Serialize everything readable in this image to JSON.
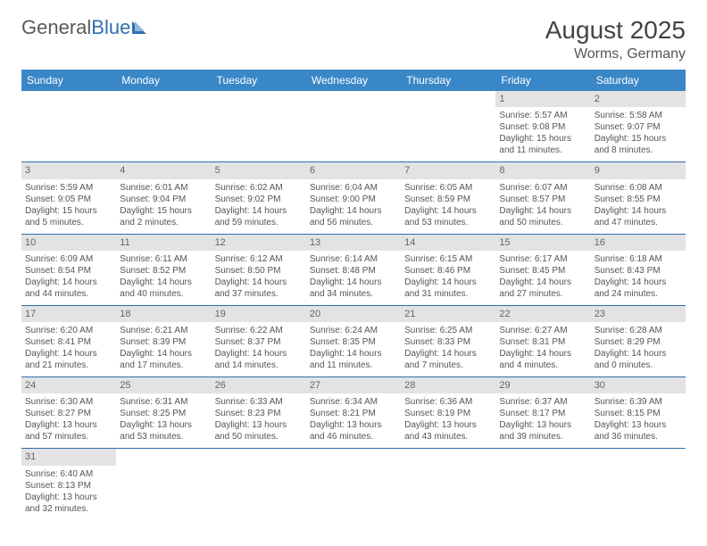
{
  "logo": {
    "text1": "General",
    "text2": "Blue"
  },
  "title": "August 2025",
  "location": "Worms, Germany",
  "colors": {
    "header_bg": "#3a87c7",
    "header_fg": "#ffffff",
    "daynum_bg": "#e3e3e3",
    "row_border": "#2f6fad",
    "logo_gray": "#5a5a5a",
    "logo_blue": "#2f6fad"
  },
  "day_headers": [
    "Sunday",
    "Monday",
    "Tuesday",
    "Wednesday",
    "Thursday",
    "Friday",
    "Saturday"
  ],
  "weeks": [
    [
      null,
      null,
      null,
      null,
      null,
      {
        "n": "1",
        "sr": "Sunrise: 5:57 AM",
        "ss": "Sunset: 9:08 PM",
        "dl1": "Daylight: 15 hours",
        "dl2": "and 11 minutes."
      },
      {
        "n": "2",
        "sr": "Sunrise: 5:58 AM",
        "ss": "Sunset: 9:07 PM",
        "dl1": "Daylight: 15 hours",
        "dl2": "and 8 minutes."
      }
    ],
    [
      {
        "n": "3",
        "sr": "Sunrise: 5:59 AM",
        "ss": "Sunset: 9:05 PM",
        "dl1": "Daylight: 15 hours",
        "dl2": "and 5 minutes."
      },
      {
        "n": "4",
        "sr": "Sunrise: 6:01 AM",
        "ss": "Sunset: 9:04 PM",
        "dl1": "Daylight: 15 hours",
        "dl2": "and 2 minutes."
      },
      {
        "n": "5",
        "sr": "Sunrise: 6:02 AM",
        "ss": "Sunset: 9:02 PM",
        "dl1": "Daylight: 14 hours",
        "dl2": "and 59 minutes."
      },
      {
        "n": "6",
        "sr": "Sunrise: 6:04 AM",
        "ss": "Sunset: 9:00 PM",
        "dl1": "Daylight: 14 hours",
        "dl2": "and 56 minutes."
      },
      {
        "n": "7",
        "sr": "Sunrise: 6:05 AM",
        "ss": "Sunset: 8:59 PM",
        "dl1": "Daylight: 14 hours",
        "dl2": "and 53 minutes."
      },
      {
        "n": "8",
        "sr": "Sunrise: 6:07 AM",
        "ss": "Sunset: 8:57 PM",
        "dl1": "Daylight: 14 hours",
        "dl2": "and 50 minutes."
      },
      {
        "n": "9",
        "sr": "Sunrise: 6:08 AM",
        "ss": "Sunset: 8:55 PM",
        "dl1": "Daylight: 14 hours",
        "dl2": "and 47 minutes."
      }
    ],
    [
      {
        "n": "10",
        "sr": "Sunrise: 6:09 AM",
        "ss": "Sunset: 8:54 PM",
        "dl1": "Daylight: 14 hours",
        "dl2": "and 44 minutes."
      },
      {
        "n": "11",
        "sr": "Sunrise: 6:11 AM",
        "ss": "Sunset: 8:52 PM",
        "dl1": "Daylight: 14 hours",
        "dl2": "and 40 minutes."
      },
      {
        "n": "12",
        "sr": "Sunrise: 6:12 AM",
        "ss": "Sunset: 8:50 PM",
        "dl1": "Daylight: 14 hours",
        "dl2": "and 37 minutes."
      },
      {
        "n": "13",
        "sr": "Sunrise: 6:14 AM",
        "ss": "Sunset: 8:48 PM",
        "dl1": "Daylight: 14 hours",
        "dl2": "and 34 minutes."
      },
      {
        "n": "14",
        "sr": "Sunrise: 6:15 AM",
        "ss": "Sunset: 8:46 PM",
        "dl1": "Daylight: 14 hours",
        "dl2": "and 31 minutes."
      },
      {
        "n": "15",
        "sr": "Sunrise: 6:17 AM",
        "ss": "Sunset: 8:45 PM",
        "dl1": "Daylight: 14 hours",
        "dl2": "and 27 minutes."
      },
      {
        "n": "16",
        "sr": "Sunrise: 6:18 AM",
        "ss": "Sunset: 8:43 PM",
        "dl1": "Daylight: 14 hours",
        "dl2": "and 24 minutes."
      }
    ],
    [
      {
        "n": "17",
        "sr": "Sunrise: 6:20 AM",
        "ss": "Sunset: 8:41 PM",
        "dl1": "Daylight: 14 hours",
        "dl2": "and 21 minutes."
      },
      {
        "n": "18",
        "sr": "Sunrise: 6:21 AM",
        "ss": "Sunset: 8:39 PM",
        "dl1": "Daylight: 14 hours",
        "dl2": "and 17 minutes."
      },
      {
        "n": "19",
        "sr": "Sunrise: 6:22 AM",
        "ss": "Sunset: 8:37 PM",
        "dl1": "Daylight: 14 hours",
        "dl2": "and 14 minutes."
      },
      {
        "n": "20",
        "sr": "Sunrise: 6:24 AM",
        "ss": "Sunset: 8:35 PM",
        "dl1": "Daylight: 14 hours",
        "dl2": "and 11 minutes."
      },
      {
        "n": "21",
        "sr": "Sunrise: 6:25 AM",
        "ss": "Sunset: 8:33 PM",
        "dl1": "Daylight: 14 hours",
        "dl2": "and 7 minutes."
      },
      {
        "n": "22",
        "sr": "Sunrise: 6:27 AM",
        "ss": "Sunset: 8:31 PM",
        "dl1": "Daylight: 14 hours",
        "dl2": "and 4 minutes."
      },
      {
        "n": "23",
        "sr": "Sunrise: 6:28 AM",
        "ss": "Sunset: 8:29 PM",
        "dl1": "Daylight: 14 hours",
        "dl2": "and 0 minutes."
      }
    ],
    [
      {
        "n": "24",
        "sr": "Sunrise: 6:30 AM",
        "ss": "Sunset: 8:27 PM",
        "dl1": "Daylight: 13 hours",
        "dl2": "and 57 minutes."
      },
      {
        "n": "25",
        "sr": "Sunrise: 6:31 AM",
        "ss": "Sunset: 8:25 PM",
        "dl1": "Daylight: 13 hours",
        "dl2": "and 53 minutes."
      },
      {
        "n": "26",
        "sr": "Sunrise: 6:33 AM",
        "ss": "Sunset: 8:23 PM",
        "dl1": "Daylight: 13 hours",
        "dl2": "and 50 minutes."
      },
      {
        "n": "27",
        "sr": "Sunrise: 6:34 AM",
        "ss": "Sunset: 8:21 PM",
        "dl1": "Daylight: 13 hours",
        "dl2": "and 46 minutes."
      },
      {
        "n": "28",
        "sr": "Sunrise: 6:36 AM",
        "ss": "Sunset: 8:19 PM",
        "dl1": "Daylight: 13 hours",
        "dl2": "and 43 minutes."
      },
      {
        "n": "29",
        "sr": "Sunrise: 6:37 AM",
        "ss": "Sunset: 8:17 PM",
        "dl1": "Daylight: 13 hours",
        "dl2": "and 39 minutes."
      },
      {
        "n": "30",
        "sr": "Sunrise: 6:39 AM",
        "ss": "Sunset: 8:15 PM",
        "dl1": "Daylight: 13 hours",
        "dl2": "and 36 minutes."
      }
    ],
    [
      {
        "n": "31",
        "sr": "Sunrise: 6:40 AM",
        "ss": "Sunset: 8:13 PM",
        "dl1": "Daylight: 13 hours",
        "dl2": "and 32 minutes."
      },
      null,
      null,
      null,
      null,
      null,
      null
    ]
  ]
}
